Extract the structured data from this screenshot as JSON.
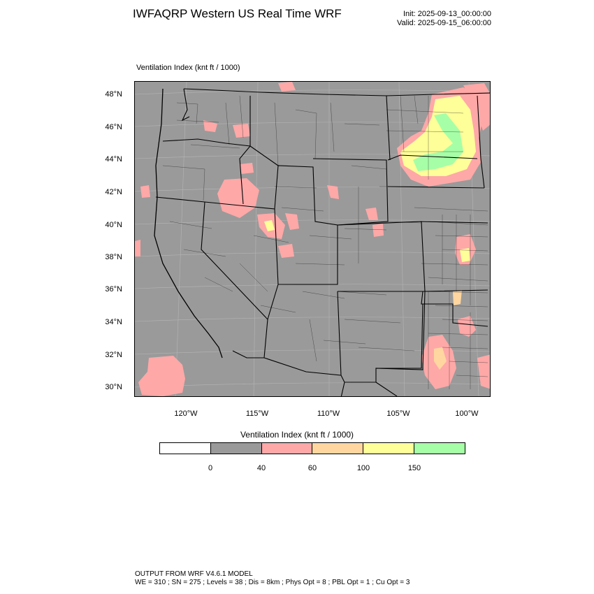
{
  "header": {
    "title": "IWFAQRP Western US Real Time WRF",
    "init": "Init: 2025-09-13_00:00:00",
    "valid": "Valid: 2025-09-15_06:00:00"
  },
  "plot": {
    "label": "Ventilation Index   (knt ft / 1000)",
    "lat_labels": [
      "48°N",
      "46°N",
      "44°N",
      "42°N",
      "40°N",
      "38°N",
      "36°N",
      "34°N",
      "32°N",
      "30°N"
    ],
    "lon_labels": [
      "120°W",
      "115°W",
      "110°W",
      "105°W",
      "100°W"
    ]
  },
  "colorbar": {
    "title": "Ventilation Index   (knt ft / 1000)",
    "colors": [
      "#ffffff",
      "#9a9a9a",
      "#ffa8a8",
      "#ffd6a0",
      "#ffff99",
      "#a6ffa6"
    ],
    "ticks": [
      "0",
      "40",
      "60",
      "100",
      "150"
    ]
  },
  "footer": {
    "line1": "OUTPUT FROM WRF V4.6.1 MODEL",
    "line2": "WE = 310 ; SN = 275 ; Levels = 38 ; Dis = 8km ; Phys Opt = 8 ; PBL Opt = 1 ; Cu Opt = 3"
  }
}
